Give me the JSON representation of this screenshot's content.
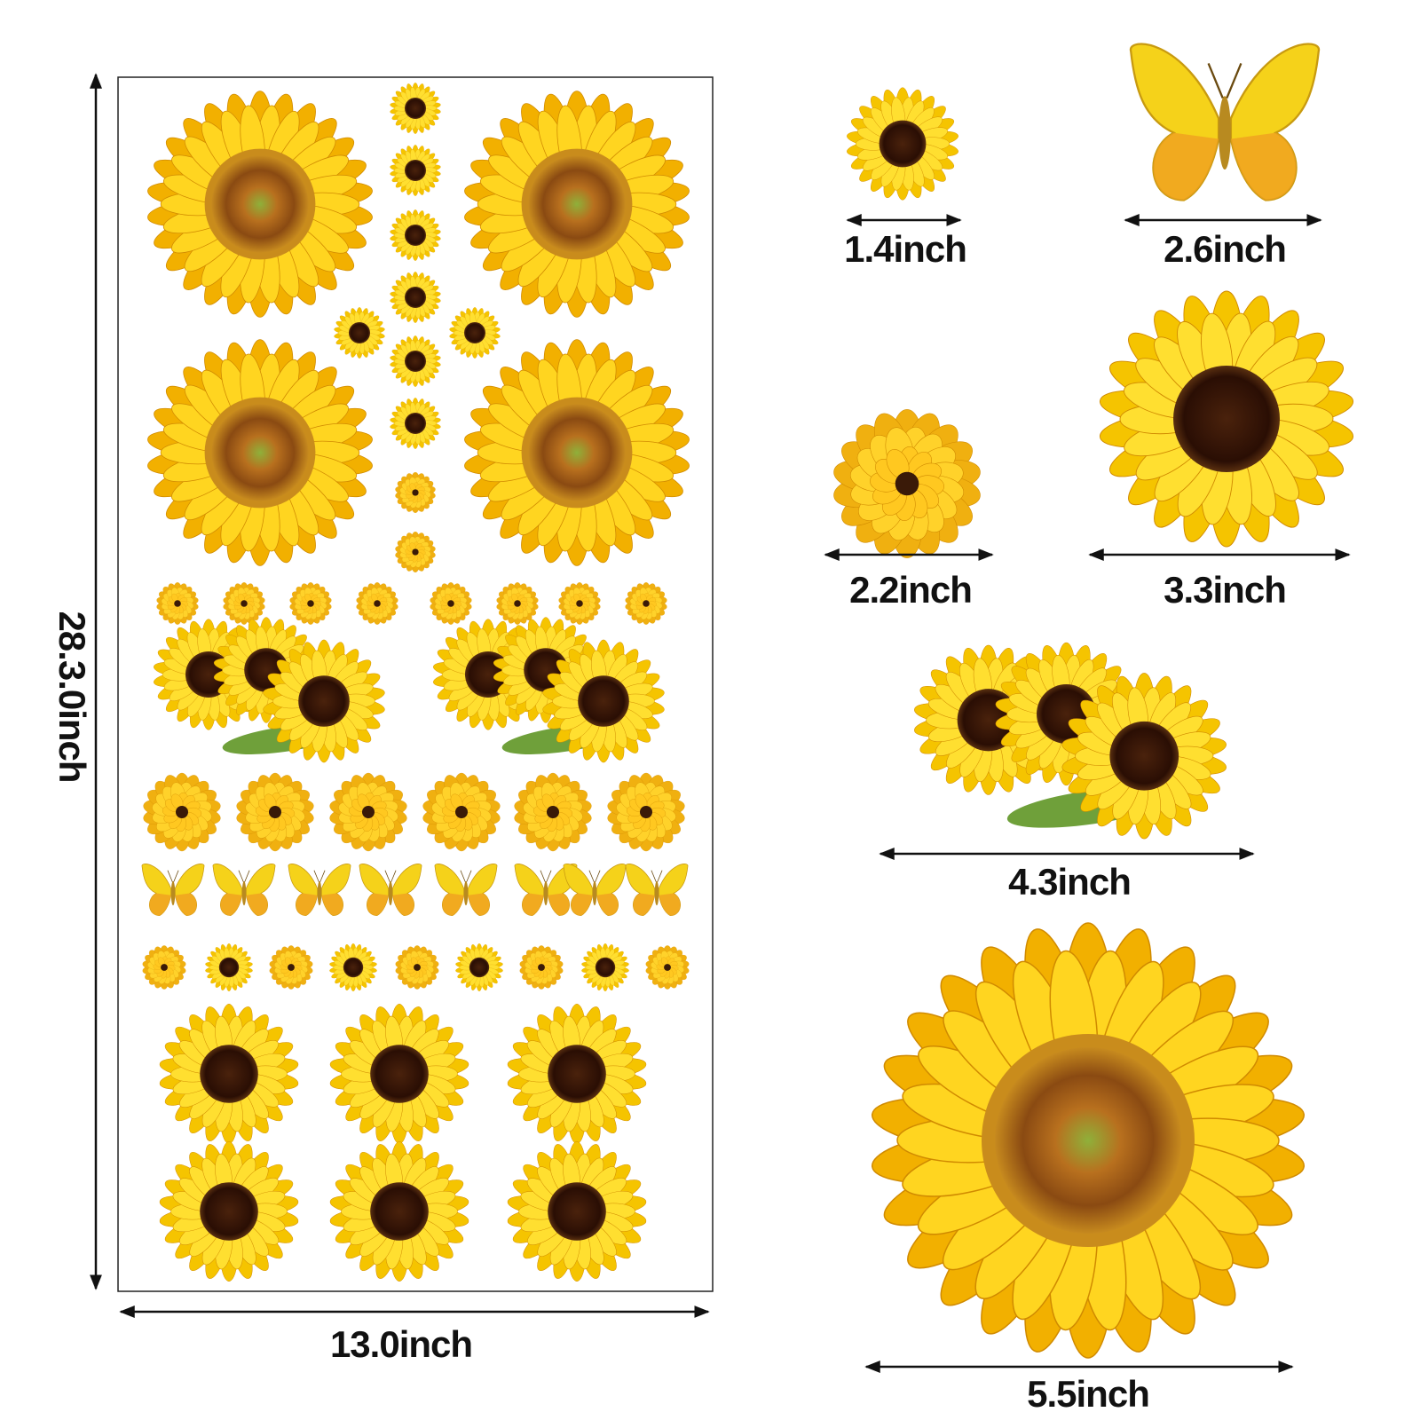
{
  "sheet": {
    "height_label": "28.3.0inch",
    "width_label": "13.0inch"
  },
  "items": [
    {
      "label": "1.4inch"
    },
    {
      "label": "2.6inch"
    },
    {
      "label": "2.2inch"
    },
    {
      "label": "3.3inch"
    },
    {
      "label": "4.3inch"
    },
    {
      "label": "5.5inch"
    }
  ]
}
